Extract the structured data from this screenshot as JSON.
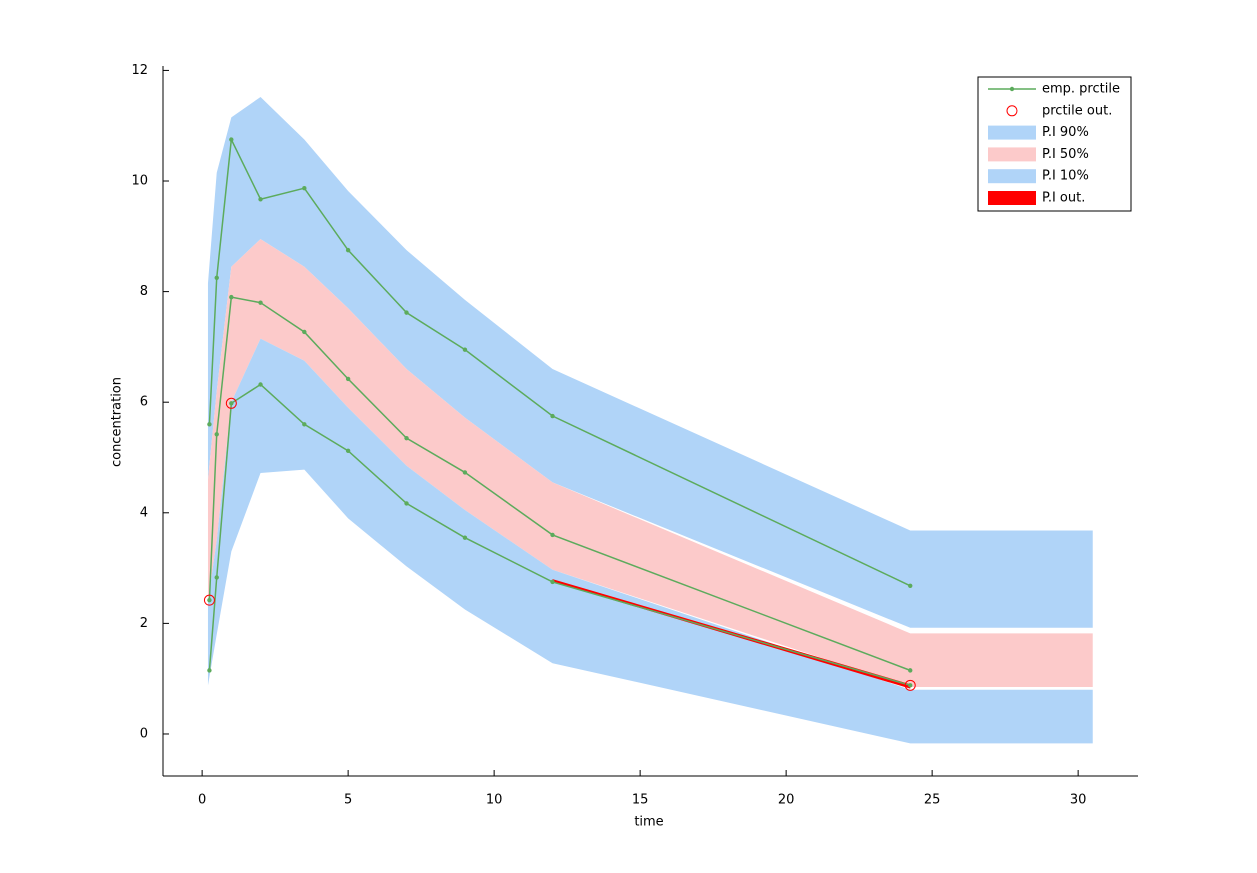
{
  "chart_data": {
    "type": "vpc",
    "x_label": "time",
    "y_label": "concentration",
    "xlim": [
      -1.34,
      32.05
    ],
    "ylim": [
      -0.76,
      12.08
    ],
    "xticks": [
      0,
      5,
      10,
      15,
      20,
      25,
      30
    ],
    "yticks": [
      0,
      2,
      4,
      6,
      8,
      10,
      12
    ],
    "legend": "top-right",
    "bands": [
      {
        "name": "P.I 90%",
        "color": "#b0d4f8",
        "x": [
          0.2,
          0.5,
          1,
          2,
          3.5,
          5,
          7,
          9,
          12,
          24.25,
          30.5
        ],
        "lower": [
          4.6,
          6.2,
          8.45,
          8.95,
          8.45,
          7.7,
          6.6,
          5.72,
          4.55,
          1.92,
          1.92
        ],
        "upper": [
          8.15,
          10.15,
          11.15,
          11.52,
          10.75,
          9.82,
          8.75,
          7.85,
          6.6,
          3.68,
          3.68
        ]
      },
      {
        "name": "P.I 50%",
        "color": "#fccaca",
        "x": [
          0.2,
          0.5,
          1,
          2,
          3.5,
          5,
          7,
          9,
          12,
          24.25,
          30.5
        ],
        "lower": [
          2.4,
          3.5,
          6.0,
          7.15,
          6.75,
          5.9,
          4.85,
          4.05,
          2.97,
          0.85,
          0.85
        ],
        "upper": [
          4.6,
          6.2,
          8.45,
          8.95,
          8.45,
          7.7,
          6.6,
          5.72,
          4.55,
          1.82,
          1.82
        ]
      },
      {
        "name": "P.I 10%",
        "color": "#b0d4f8",
        "x": [
          0.2,
          0.5,
          1,
          2,
          3.5,
          5,
          7,
          9,
          12,
          24.25,
          30.5
        ],
        "lower": [
          0.88,
          1.8,
          3.3,
          4.72,
          4.78,
          3.9,
          3.03,
          2.25,
          1.28,
          -0.17,
          -0.17
        ],
        "upper": [
          2.4,
          3.5,
          6.0,
          7.15,
          6.75,
          5.9,
          4.85,
          4.05,
          2.97,
          0.8,
          0.8
        ]
      },
      {
        "name": "P.I out.",
        "color": "#ff0000",
        "x": [
          12,
          24.25
        ],
        "lower": [
          2.75,
          0.82
        ],
        "upper": [
          2.8,
          0.9
        ]
      }
    ],
    "empirical": {
      "name": "emp. prctile",
      "color": "#5cab5c",
      "x": [
        0.25,
        0.5,
        1,
        2,
        3.5,
        5,
        7,
        9,
        12,
        24.25
      ],
      "upper": [
        5.6,
        8.25,
        10.75,
        9.67,
        9.87,
        8.75,
        7.62,
        6.95,
        5.75,
        2.68
      ],
      "median": [
        2.42,
        5.42,
        7.9,
        7.8,
        7.27,
        6.42,
        5.35,
        4.73,
        3.6,
        1.15
      ],
      "lower": [
        1.15,
        2.83,
        5.98,
        6.32,
        5.6,
        5.12,
        4.17,
        3.55,
        2.75,
        0.88
      ]
    },
    "outliers": {
      "name": "prctile out.",
      "color": "#ff0000",
      "x": [
        0.25,
        1,
        24.25
      ],
      "y": [
        2.42,
        5.98,
        0.88
      ]
    }
  }
}
